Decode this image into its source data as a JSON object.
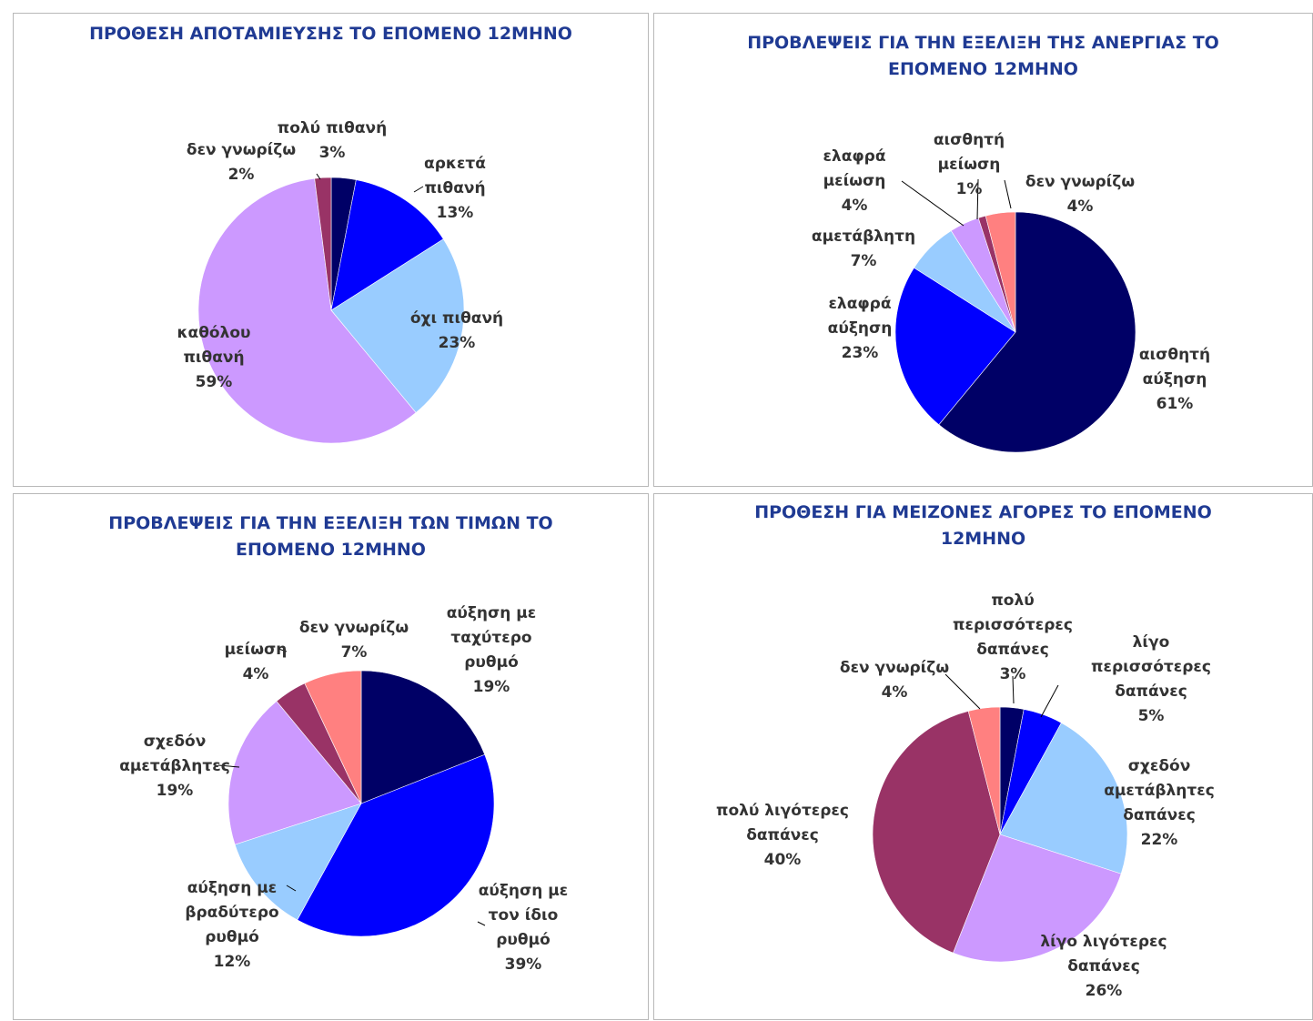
{
  "chart_data": [
    {
      "type": "pie",
      "title": "ΠΡΟΘΕΣΗ ΑΠΟΤΑΜΙΕΥΣΗΣ ΤΟ ΕΠΟΜΕΝΟ 12ΜΗΝΟ",
      "slices": [
        {
          "label": "πολύ πιθανή",
          "value": 3,
          "pct": "3%",
          "color": "#000066"
        },
        {
          "label": "αρκετά πιθανή",
          "value": 13,
          "pct": "13%",
          "color": "#0000ff"
        },
        {
          "label": "όχι πιθανή",
          "value": 23,
          "pct": "23%",
          "color": "#99ccff"
        },
        {
          "label": "καθόλου πιθανή",
          "value": 59,
          "pct": "59%",
          "color": "#cc99ff"
        },
        {
          "label": "δεν γνωρίζω",
          "value": 2,
          "pct": "2%",
          "color": "#993366"
        }
      ]
    },
    {
      "type": "pie",
      "title": "ΠΡΟΒΛΕΨΕΙΣ ΓΙΑ ΤΗΝ ΕΞΕΛΙΞΗ ΤΗΣ ΑΝΕΡΓΙΑΣ ΤΟ ΕΠΟΜΕΝΟ 12ΜΗΝΟ",
      "slices": [
        {
          "label": "αισθητή αύξηση",
          "value": 61,
          "pct": "61%",
          "color": "#000066"
        },
        {
          "label": "ελαφρά αύξηση",
          "value": 23,
          "pct": "23%",
          "color": "#0000ff"
        },
        {
          "label": "αμετάβλητη",
          "value": 7,
          "pct": "7%",
          "color": "#99ccff"
        },
        {
          "label": "ελαφρά μείωση",
          "value": 4,
          "pct": "4%",
          "color": "#cc99ff"
        },
        {
          "label": "αισθητή μείωση",
          "value": 1,
          "pct": "1%",
          "color": "#993366"
        },
        {
          "label": "δεν γνωρίζω",
          "value": 4,
          "pct": "4%",
          "color": "#ff8080"
        }
      ]
    },
    {
      "type": "pie",
      "title": "ΠΡΟΒΛΕΨΕΙΣ ΓΙΑ ΤΗΝ ΕΞΕΛΙΞΗ ΤΩΝ ΤΙΜΩΝ ΤΟ ΕΠΟΜΕΝΟ 12ΜΗΝΟ",
      "slices": [
        {
          "label": "αύξηση με ταχύτερο ρυθμό",
          "value": 19,
          "pct": "19%",
          "color": "#000066"
        },
        {
          "label": "αύξηση με τον ίδιο ρυθμό",
          "value": 39,
          "pct": "39%",
          "color": "#0000ff"
        },
        {
          "label": "αύξηση με βραδύτερο ρυθμό",
          "value": 12,
          "pct": "12%",
          "color": "#99ccff"
        },
        {
          "label": "σχεδόν αμετάβλητες",
          "value": 19,
          "pct": "19%",
          "color": "#cc99ff"
        },
        {
          "label": "μείωση",
          "value": 4,
          "pct": "4%",
          "color": "#993366"
        },
        {
          "label": "δεν γνωρίζω",
          "value": 7,
          "pct": "7%",
          "color": "#ff8080"
        }
      ]
    },
    {
      "type": "pie",
      "title": "ΠΡΟΘΕΣΗ ΓΙΑ ΜΕΙΖΟΝΕΣ ΑΓΟΡΕΣ ΤΟ ΕΠΟΜΕΝΟ 12ΜΗΝΟ",
      "slices": [
        {
          "label": "πολύ περισσότερες δαπάνες",
          "value": 3,
          "pct": "3%",
          "color": "#000066"
        },
        {
          "label": "λίγο περισσότερες δαπάνες",
          "value": 5,
          "pct": "5%",
          "color": "#0000ff"
        },
        {
          "label": "σχεδόν αμετάβλητες δαπάνες",
          "value": 22,
          "pct": "22%",
          "color": "#99ccff"
        },
        {
          "label": "λίγο λιγότερες δαπάνες",
          "value": 26,
          "pct": "26%",
          "color": "#cc99ff"
        },
        {
          "label": "πολύ λιγότερες δαπάνες",
          "value": 40,
          "pct": "40%",
          "color": "#993366"
        },
        {
          "label": "δεν γνωρίζω",
          "value": 4,
          "pct": "4%",
          "color": "#ff8080"
        }
      ]
    }
  ]
}
